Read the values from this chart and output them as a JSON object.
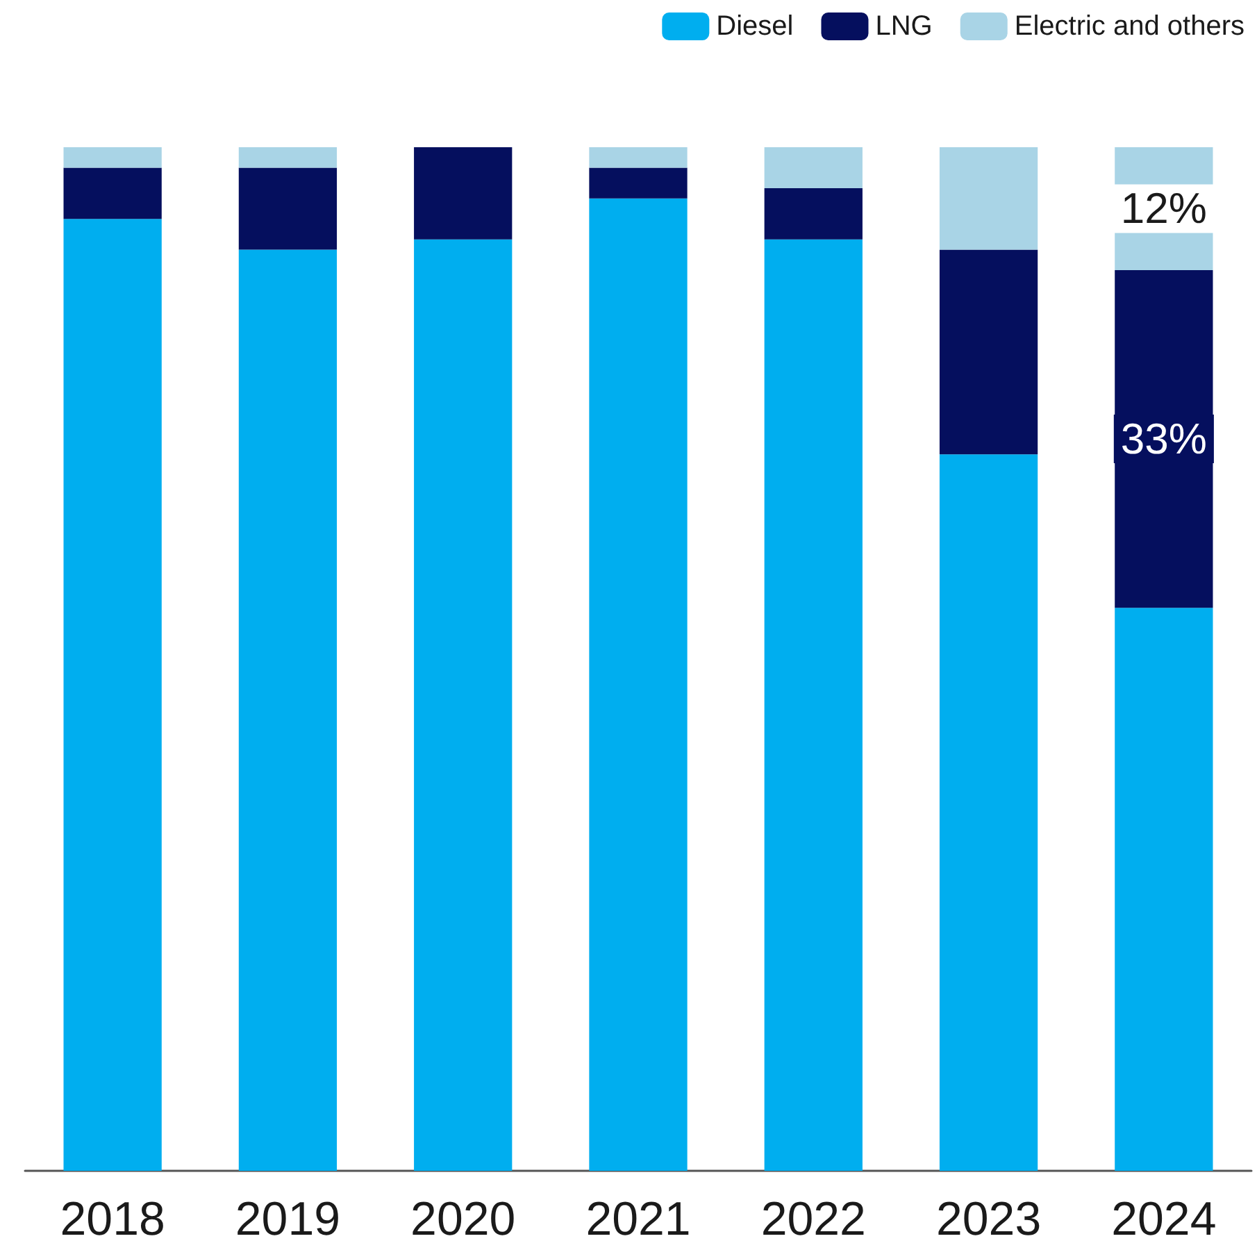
{
  "chart_data": {
    "type": "bar",
    "stacked": true,
    "ylim": [
      0,
      100
    ],
    "tick_labels": "x",
    "legend": "top right",
    "grid": false,
    "categories": [
      "2018",
      "2019",
      "2020",
      "2021",
      "2022",
      "2023",
      "2024"
    ],
    "series": [
      {
        "name": "Diesel",
        "color": "#00aeef",
        "values": [
          93,
          90,
          91,
          95,
          91,
          70,
          55
        ],
        "value_labels": [
          null,
          null,
          null,
          null,
          null,
          null,
          null
        ]
      },
      {
        "name": "LNG",
        "color": "#050f5e",
        "values": [
          5,
          8,
          9,
          3,
          5,
          20,
          33
        ],
        "value_labels": [
          null,
          null,
          null,
          null,
          null,
          null,
          "33%"
        ]
      },
      {
        "name": "Electric and others",
        "color": "#a9d4e6",
        "values": [
          2,
          2,
          0,
          2,
          4,
          10,
          12
        ],
        "value_labels": [
          null,
          null,
          null,
          null,
          null,
          null,
          "12%"
        ]
      }
    ]
  }
}
